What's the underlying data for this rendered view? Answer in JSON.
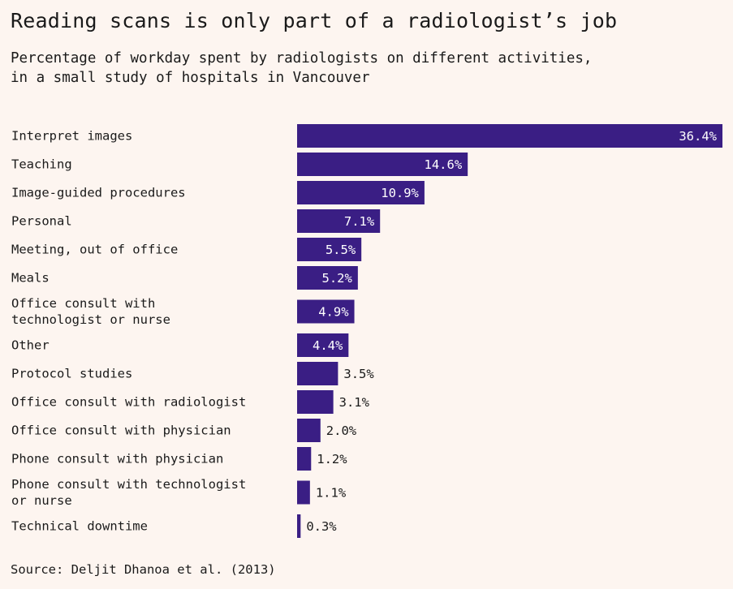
{
  "header": {
    "title": "Reading scans is only part of a radiologist’s job",
    "subtitle_line1": "Percentage of workday spent by radiologists on different activities,",
    "subtitle_line2": "in a small study of hospitals in Vancouver"
  },
  "footer": {
    "source": "Source: Deljit Dhanoa et al. (2013)"
  },
  "colors": {
    "bar": "#3a1e84",
    "background": "#fdf5f0",
    "label_inside": "#ffffff",
    "label_outside": "#1a1a1a"
  },
  "chart_data": {
    "type": "bar",
    "orientation": "horizontal",
    "value_suffix": "%",
    "categories": [
      "Interpret images",
      "Teaching",
      "Image-guided procedures",
      "Personal",
      "Meeting, out of office",
      "Meals",
      "Office consult with technologist or nurse",
      "Other",
      "Protocol studies",
      "Office consult with radiologist",
      "Office consult with physician",
      "Phone consult with physician",
      "Phone consult with technologist or nurse",
      "Technical downtime"
    ],
    "category_lines": [
      [
        "Interpret images"
      ],
      [
        "Teaching"
      ],
      [
        "Image-guided procedures"
      ],
      [
        "Personal"
      ],
      [
        "Meeting, out of office"
      ],
      [
        "Meals"
      ],
      [
        "Office consult with",
        "technologist or nurse"
      ],
      [
        "Other"
      ],
      [
        "Protocol studies"
      ],
      [
        "Office consult with radiologist"
      ],
      [
        "Office consult with physician"
      ],
      [
        "Phone consult with physician"
      ],
      [
        "Phone consult with technologist",
        "or nurse"
      ],
      [
        "Technical downtime"
      ]
    ],
    "values": [
      36.4,
      14.6,
      10.9,
      7.1,
      5.5,
      5.2,
      4.9,
      4.4,
      3.5,
      3.1,
      2.0,
      1.2,
      1.1,
      0.3
    ],
    "value_labels": [
      "36.4%",
      "14.6%",
      "10.9%",
      "7.1%",
      "5.5%",
      "5.2%",
      "4.9%",
      "4.4%",
      "3.5%",
      "3.1%",
      "2.0%",
      "1.2%",
      "1.1%",
      "0.3%"
    ],
    "xlim": [
      0,
      36.4
    ],
    "grid": false,
    "legend": "none"
  }
}
